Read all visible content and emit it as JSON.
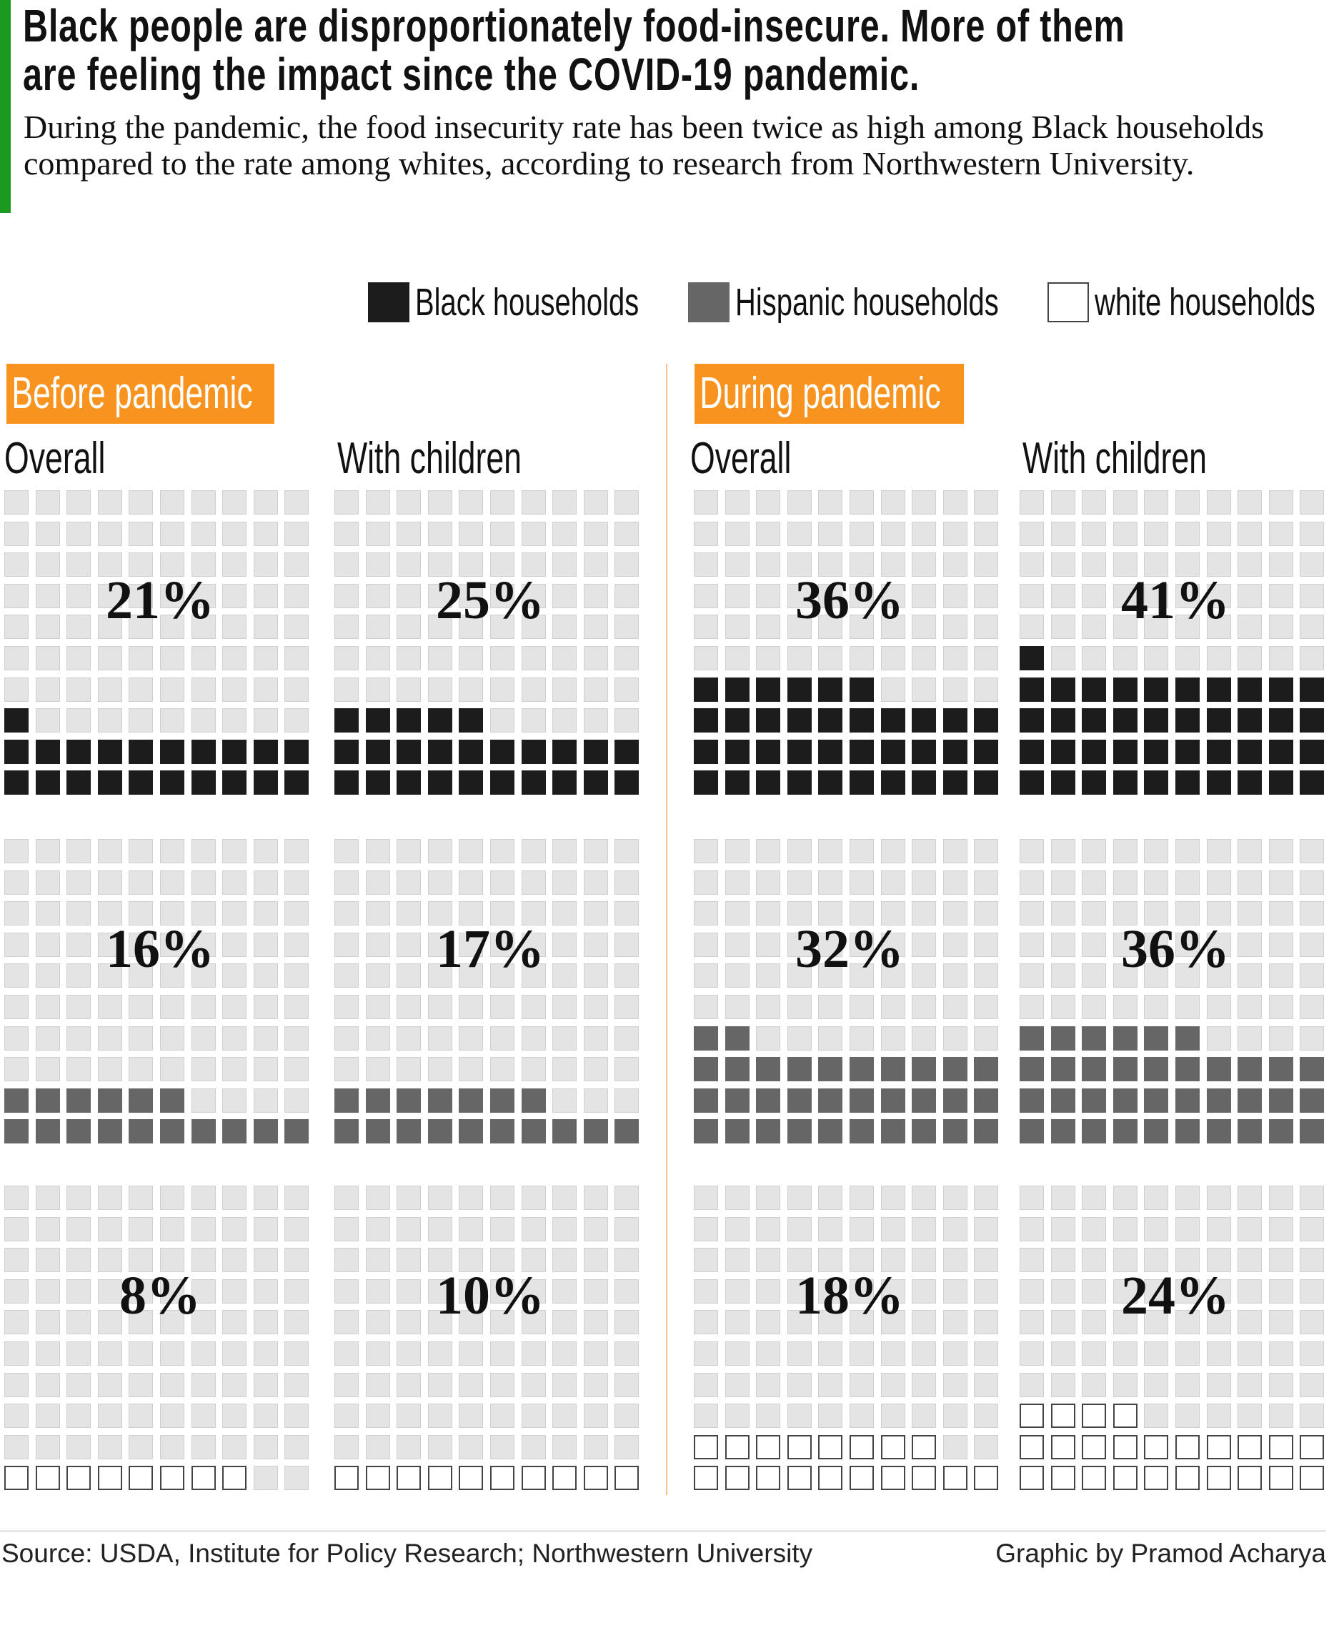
{
  "header": {
    "title_lines": [
      "Black people are disproportionately food-insecure. More of them",
      "are feeling the impact since the COVID-19 pandemic."
    ],
    "subtitle": "During the pandemic, the food insecurity rate has been twice as high among Black households compared to the rate among whites, according to research from Northwestern University."
  },
  "colors": {
    "accent_bar": "#1a9a1f",
    "badge": "#f7931e",
    "black": "#1c1c1c",
    "hispanic": "#666666",
    "white": "#ffffff",
    "empty": "#e4e4e4"
  },
  "chart_data": {
    "type": "waffle",
    "grid": "10x10",
    "legend": [
      "Black households",
      "Hispanic households",
      "white households"
    ],
    "legend_placement": "top-right",
    "periods": [
      {
        "label": "Before pandemic",
        "groups": [
          {
            "label": "Overall",
            "values": [
              {
                "series": "Black households",
                "value": 21,
                "text": "21%"
              },
              {
                "series": "Hispanic households",
                "value": 16,
                "text": "16%"
              },
              {
                "series": "white households",
                "value": 8,
                "text": "8%"
              }
            ]
          },
          {
            "label": "With children",
            "values": [
              {
                "series": "Black households",
                "value": 25,
                "text": "25%"
              },
              {
                "series": "Hispanic households",
                "value": 17,
                "text": "17%"
              },
              {
                "series": "white households",
                "value": 10,
                "text": "10%"
              }
            ]
          }
        ]
      },
      {
        "label": "During pandemic",
        "groups": [
          {
            "label": "Overall",
            "values": [
              {
                "series": "Black households",
                "value": 36,
                "text": "36%"
              },
              {
                "series": "Hispanic households",
                "value": 32,
                "text": "32%"
              },
              {
                "series": "white households",
                "value": 18,
                "text": "18%"
              }
            ]
          },
          {
            "label": "With children",
            "values": [
              {
                "series": "Black households",
                "value": 41,
                "text": "41%"
              },
              {
                "series": "Hispanic households",
                "value": 36,
                "text": "36%"
              },
              {
                "series": "white households",
                "value": 24,
                "text": "24%"
              }
            ]
          }
        ]
      }
    ]
  },
  "footer": {
    "source": "Source: USDA, Institute for Policy Research; Northwestern University",
    "credit": "Graphic by Pramod Acharya"
  }
}
